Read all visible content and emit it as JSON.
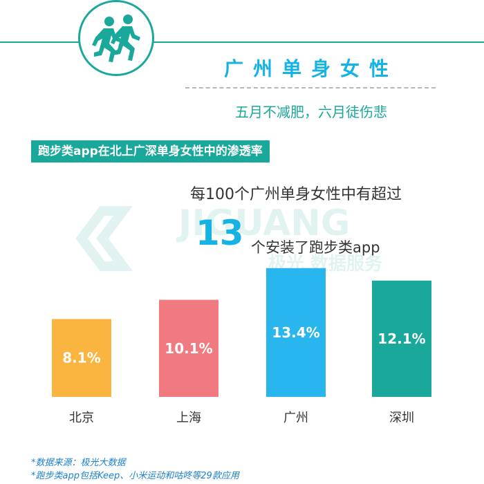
{
  "header": {
    "title": "广州单身女性",
    "subtitle": "五月不减肥，六月徒伤悲"
  },
  "section": {
    "banner": "跑步类app在北上广深单身女性中的渗透率"
  },
  "highlight": {
    "line1": "每100个广州单身女性中有超过",
    "number": "13",
    "line2": "个安装了跑步类app"
  },
  "watermark": {
    "text_en": "JIGUANG",
    "text_cn": "极光 数据服务"
  },
  "chart_data": {
    "type": "bar",
    "categories": [
      "北京",
      "上海",
      "广州",
      "深圳"
    ],
    "values": [
      8.1,
      10.1,
      13.4,
      12.1
    ],
    "labels": [
      "8.1%",
      "10.1%",
      "13.4%",
      "12.1%"
    ],
    "colors": [
      "#f9b53f",
      "#f07a7f",
      "#29b6ef",
      "#1aa89a"
    ],
    "title": "",
    "xlabel": "",
    "ylabel": "",
    "ylim": [
      0,
      15
    ],
    "grid": false
  },
  "footnotes": [
    "*数据来源：极光大数据",
    "*跑步类app包括Keep、小米运动和咕咚等29款应用"
  ],
  "colors": {
    "accent": "#1aa89a",
    "title": "#14b3e3",
    "footnote": "#1a7fd1"
  },
  "icons": {
    "logo": "running-people-icon"
  }
}
